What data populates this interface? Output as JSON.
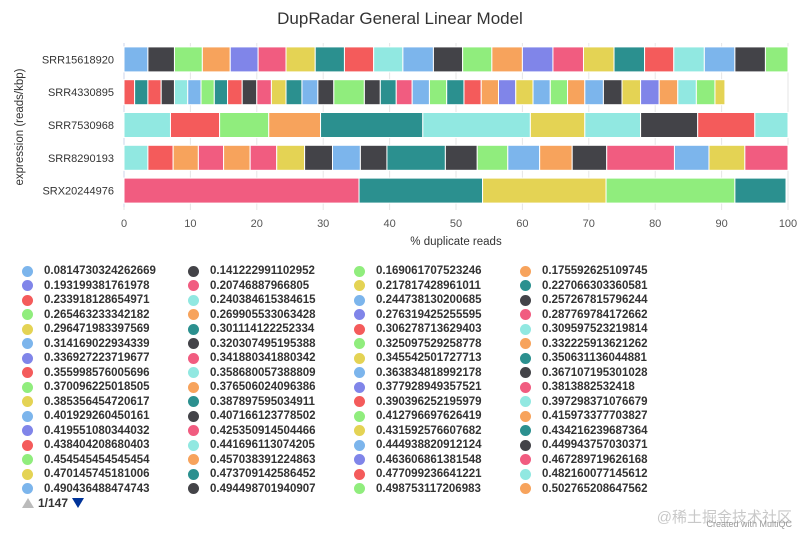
{
  "chart_data": {
    "type": "bar",
    "orientation": "horizontal",
    "stacked": true,
    "title": "DupRadar General Linear Model",
    "xlabel": "% duplicate reads",
    "ylabel": "expression (reads/kbp)",
    "xlim": [
      0,
      100
    ],
    "xticks": [
      "0",
      "10",
      "20",
      "30",
      "40",
      "50",
      "60",
      "70",
      "80",
      "90",
      "100"
    ],
    "grid": true,
    "legend_position": "bottom",
    "categories": [
      "SRR15618920",
      "SRR4330895",
      "SRR7530968",
      "SRR8290193",
      "SRX20244976"
    ],
    "segments": [
      {
        "colors": [
          "#7cb5ec",
          "#434348",
          "#90ed7d",
          "#f7a35c",
          "#8085e9",
          "#f15c80",
          "#e4d354",
          "#2b908f",
          "#f45b5b",
          "#91e8e1",
          "#7cb5ec",
          "#434348",
          "#90ed7d",
          "#f7a35c",
          "#8085e9",
          "#f15c80",
          "#e4d354",
          "#2b908f",
          "#f45b5b",
          "#91e8e1",
          "#7cb5ec",
          "#434348",
          "#90ed7d"
        ],
        "widths": [
          3.6,
          4.0,
          4.2,
          4.2,
          4.2,
          4.2,
          4.4,
          4.4,
          4.4,
          4.4,
          4.6,
          4.4,
          4.4,
          4.6,
          4.6,
          4.6,
          4.6,
          4.6,
          4.4,
          4.6,
          4.6,
          4.6,
          3.4
        ]
      },
      {
        "colors": [
          "#f45b5b",
          "#2b908f",
          "#f45b5b",
          "#434348",
          "#91e8e1",
          "#7cb5ec",
          "#90ed7d",
          "#2b908f",
          "#f45b5b",
          "#434348",
          "#f15c80",
          "#e4d354",
          "#2b908f",
          "#7cb5ec",
          "#434348",
          "#90ed7d",
          "#434348",
          "#2b908f",
          "#f15c80",
          "#7cb5ec",
          "#90ed7d",
          "#2b908f",
          "#f45b5b",
          "#f7a35c",
          "#8085e9",
          "#e4d354",
          "#7cb5ec",
          "#90ed7d",
          "#f7a35c",
          "#7cb5ec",
          "#434348",
          "#e4d354",
          "#8085e9",
          "#f7a35c",
          "#91e8e1",
          "#90ed7d",
          "#e4d354"
        ],
        "widths": [
          1.6,
          2.0,
          2.0,
          2.0,
          2.0,
          2.0,
          2.0,
          2.0,
          2.2,
          2.2,
          2.2,
          2.2,
          2.4,
          2.4,
          2.4,
          4.6,
          2.4,
          2.4,
          2.4,
          2.6,
          2.6,
          2.6,
          2.6,
          2.6,
          2.6,
          2.6,
          2.6,
          2.6,
          2.6,
          2.8,
          2.8,
          2.8,
          2.8,
          2.8,
          2.8,
          2.8,
          1.5
        ]
      },
      {
        "colors": [
          "#91e8e1",
          "#f45b5b",
          "#90ed7d",
          "#f7a35c",
          "#2b908f",
          "#91e8e1",
          "#e4d354",
          "#91e8e1",
          "#434348",
          "#f45b5b",
          "#91e8e1"
        ],
        "widths": [
          7.0,
          7.4,
          7.4,
          7.8,
          15.4,
          16.2,
          8.2,
          8.4,
          8.6,
          8.6,
          5.9
        ]
      },
      {
        "colors": [
          "#91e8e1",
          "#f45b5b",
          "#f7a35c",
          "#f15c80",
          "#f7a35c",
          "#f15c80",
          "#e4d354",
          "#434348",
          "#7cb5ec",
          "#434348",
          "#2b908f",
          "#434348",
          "#90ed7d",
          "#7cb5ec",
          "#f7a35c",
          "#434348",
          "#f15c80",
          "#7cb5ec",
          "#e4d354",
          "#f15c80"
        ],
        "widths": [
          3.6,
          3.8,
          3.8,
          3.8,
          4.0,
          4.0,
          4.2,
          4.2,
          4.2,
          4.0,
          8.8,
          4.8,
          4.6,
          4.8,
          4.9,
          5.2,
          10.2,
          5.2,
          5.4,
          7.3
        ]
      },
      {
        "colors": [
          "#f15c80",
          "#2b908f",
          "#e4d354",
          "#90ed7d",
          "#2b908f"
        ],
        "widths": [
          35.4,
          18.6,
          18.6,
          19.4,
          7.7
        ]
      }
    ],
    "legend": [
      {
        "label": "0.0814730324262669",
        "color": "#7cb5ec"
      },
      {
        "label": "0.141222991102952",
        "color": "#434348"
      },
      {
        "label": "0.169061707523246",
        "color": "#90ed7d"
      },
      {
        "label": "0.175592625109745",
        "color": "#f7a35c"
      },
      {
        "label": "0.193199381761978",
        "color": "#8085e9"
      },
      {
        "label": "0.20746887966805",
        "color": "#f15c80"
      },
      {
        "label": "0.217817428961011",
        "color": "#e4d354"
      },
      {
        "label": "0.227066303360581",
        "color": "#2b908f"
      },
      {
        "label": "0.233918128654971",
        "color": "#f45b5b"
      },
      {
        "label": "0.240384615384615",
        "color": "#91e8e1"
      },
      {
        "label": "0.244738130200685",
        "color": "#7cb5ec"
      },
      {
        "label": "0.257267815796244",
        "color": "#434348"
      },
      {
        "label": "0.265463233342182",
        "color": "#90ed7d"
      },
      {
        "label": "0.269905533063428",
        "color": "#f7a35c"
      },
      {
        "label": "0.276319425255595",
        "color": "#8085e9"
      },
      {
        "label": "0.287769784172662",
        "color": "#f15c80"
      },
      {
        "label": "0.296471983397569",
        "color": "#e4d354"
      },
      {
        "label": "0.301114122252334",
        "color": "#2b908f"
      },
      {
        "label": "0.306278713629403",
        "color": "#f45b5b"
      },
      {
        "label": "0.309597523219814",
        "color": "#91e8e1"
      },
      {
        "label": "0.314169022934339",
        "color": "#7cb5ec"
      },
      {
        "label": "0.320307495195388",
        "color": "#434348"
      },
      {
        "label": "0.325097529258778",
        "color": "#90ed7d"
      },
      {
        "label": "0.332225913621262",
        "color": "#f7a35c"
      },
      {
        "label": "0.336927223719677",
        "color": "#8085e9"
      },
      {
        "label": "0.341880341880342",
        "color": "#f15c80"
      },
      {
        "label": "0.345542501727713",
        "color": "#e4d354"
      },
      {
        "label": "0.350631136044881",
        "color": "#2b908f"
      },
      {
        "label": "0.355998576005696",
        "color": "#f45b5b"
      },
      {
        "label": "0.358680057388809",
        "color": "#91e8e1"
      },
      {
        "label": "0.363834818992178",
        "color": "#7cb5ec"
      },
      {
        "label": "0.367107195301028",
        "color": "#434348"
      },
      {
        "label": "0.370096225018505",
        "color": "#90ed7d"
      },
      {
        "label": "0.376506024096386",
        "color": "#f7a35c"
      },
      {
        "label": "0.377928949357521",
        "color": "#8085e9"
      },
      {
        "label": "0.3813882532418",
        "color": "#f15c80"
      },
      {
        "label": "0.385356454720617",
        "color": "#e4d354"
      },
      {
        "label": "0.387897595034911",
        "color": "#2b908f"
      },
      {
        "label": "0.390396252195979",
        "color": "#f45b5b"
      },
      {
        "label": "0.397298371076679",
        "color": "#91e8e1"
      },
      {
        "label": "0.401929260450161",
        "color": "#7cb5ec"
      },
      {
        "label": "0.407166123778502",
        "color": "#434348"
      },
      {
        "label": "0.412796697626419",
        "color": "#90ed7d"
      },
      {
        "label": "0.415973377703827",
        "color": "#f7a35c"
      },
      {
        "label": "0.419551080344032",
        "color": "#8085e9"
      },
      {
        "label": "0.425350914504466",
        "color": "#f15c80"
      },
      {
        "label": "0.431592576607682",
        "color": "#e4d354"
      },
      {
        "label": "0.434216239687364",
        "color": "#2b908f"
      },
      {
        "label": "0.438404208680403",
        "color": "#f45b5b"
      },
      {
        "label": "0.441696113074205",
        "color": "#91e8e1"
      },
      {
        "label": "0.444938820912124",
        "color": "#7cb5ec"
      },
      {
        "label": "0.449943757030371",
        "color": "#434348"
      },
      {
        "label": "0.454545454545454",
        "color": "#90ed7d"
      },
      {
        "label": "0.457038391224863",
        "color": "#f7a35c"
      },
      {
        "label": "0.463606861381548",
        "color": "#8085e9"
      },
      {
        "label": "0.467289719626168",
        "color": "#f15c80"
      },
      {
        "label": "0.470145745181006",
        "color": "#e4d354"
      },
      {
        "label": "0.473709142586452",
        "color": "#2b908f"
      },
      {
        "label": "0.477099236641221",
        "color": "#f45b5b"
      },
      {
        "label": "0.482160077145612",
        "color": "#91e8e1"
      },
      {
        "label": "0.490436488474743",
        "color": "#7cb5ec"
      },
      {
        "label": "0.494498701940907",
        "color": "#434348"
      },
      {
        "label": "0.498753117206983",
        "color": "#90ed7d"
      },
      {
        "label": "0.502765208647562",
        "color": "#f7a35c"
      }
    ]
  },
  "pager": {
    "text": "1/147"
  },
  "credit": "Created with MultiQC",
  "watermark": "@稀土掘金技术社区"
}
